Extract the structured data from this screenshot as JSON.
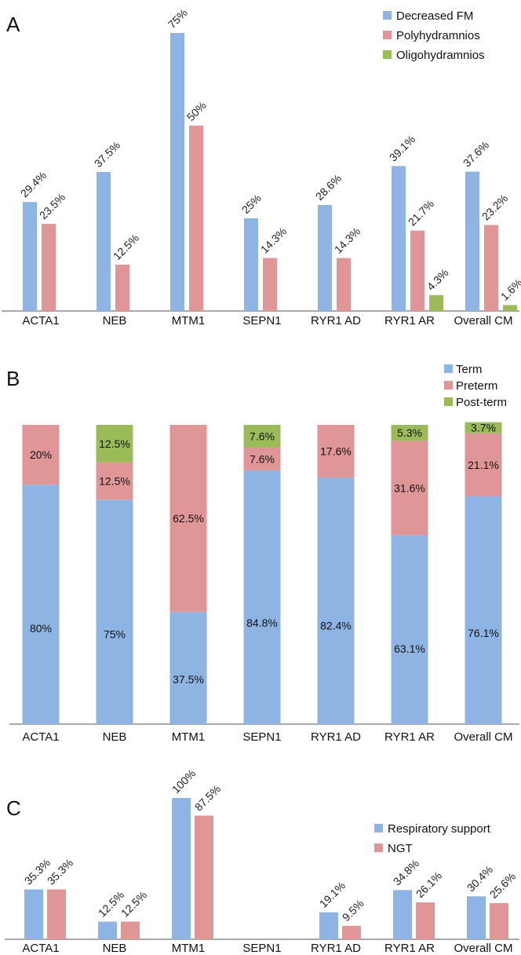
{
  "colors": {
    "blue": "#8eb4e3",
    "red": "#e09696",
    "green": "#9bbb59",
    "axis": "#777777"
  },
  "chart_data": [
    {
      "panel": "A",
      "type": "bar",
      "categories": [
        "ACTA1",
        "NEB",
        "MTM1",
        "SEPN1",
        "RYR1 AD",
        "RYR1 AR",
        "Overall CM"
      ],
      "series": [
        {
          "name": "Decreased FM",
          "values": [
            29.4,
            37.5,
            75,
            25,
            28.6,
            39.1,
            37.6
          ],
          "labels": [
            "29.4%",
            "37.5%",
            "75%",
            "25%",
            "28.6%",
            "39.1%",
            "37.6%"
          ]
        },
        {
          "name": "Polyhydramnios",
          "values": [
            23.5,
            12.5,
            50,
            14.3,
            14.3,
            21.7,
            23.2
          ],
          "labels": [
            "23.5%",
            "12.5%",
            "50%",
            "14.3%",
            "14.3%",
            "21.7%",
            "23.2%"
          ]
        },
        {
          "name": "Oligohydramnios",
          "values": [
            null,
            null,
            null,
            null,
            null,
            4.3,
            1.6
          ],
          "labels": [
            "",
            "",
            "",
            "",
            "",
            "4.3%",
            "1.6%"
          ]
        }
      ],
      "legend_position": "top-right",
      "ylim": [
        0,
        75
      ]
    },
    {
      "panel": "B",
      "type": "bar",
      "stacked": true,
      "categories": [
        "ACTA1",
        "NEB",
        "MTM1",
        "SEPN1",
        "RYR1 AD",
        "RYR1 AR",
        "Overall CM"
      ],
      "series": [
        {
          "name": "Term",
          "values": [
            80,
            75,
            37.5,
            84.8,
            82.4,
            63.1,
            76.1
          ],
          "labels": [
            "80%",
            "75%",
            "37.5%",
            "84.8%",
            "82.4%",
            "63.1%",
            "76.1%"
          ]
        },
        {
          "name": "Preterm",
          "values": [
            20,
            12.5,
            62.5,
            7.6,
            17.6,
            31.6,
            21.1
          ],
          "labels": [
            "20%",
            "12.5%",
            "62.5%",
            "7.6%",
            "17.6%",
            "31.6%",
            "21.1%"
          ]
        },
        {
          "name": "Post-term",
          "values": [
            0,
            12.5,
            0,
            7.6,
            0,
            5.3,
            3.7
          ],
          "labels": [
            "",
            "12.5%",
            "",
            "7.6%",
            "",
            "5.3%",
            "3.7%"
          ]
        }
      ],
      "legend_position": "top-right",
      "ylim": [
        0,
        100
      ]
    },
    {
      "panel": "C",
      "type": "bar",
      "categories": [
        "ACTA1",
        "NEB",
        "MTM1",
        "SEPN1",
        "RYR1 AD",
        "RYR1 AR",
        "Overall CM"
      ],
      "series": [
        {
          "name": "Respiratory support",
          "values": [
            35.3,
            12.5,
            100,
            null,
            19.1,
            34.8,
            30.4
          ],
          "labels": [
            "35.3%",
            "12.5%",
            "100%",
            "",
            "19.1%",
            "34.8%",
            "30.4%"
          ]
        },
        {
          "name": "NGT",
          "values": [
            35.3,
            12.5,
            87.5,
            null,
            9.5,
            26.1,
            25.6
          ],
          "labels": [
            "35.3%",
            "12.5%",
            "87.5%",
            "",
            "9.5%",
            "26.1%",
            "25.6%"
          ]
        }
      ],
      "legend_position": "top-right",
      "ylim": [
        0,
        100
      ]
    }
  ]
}
